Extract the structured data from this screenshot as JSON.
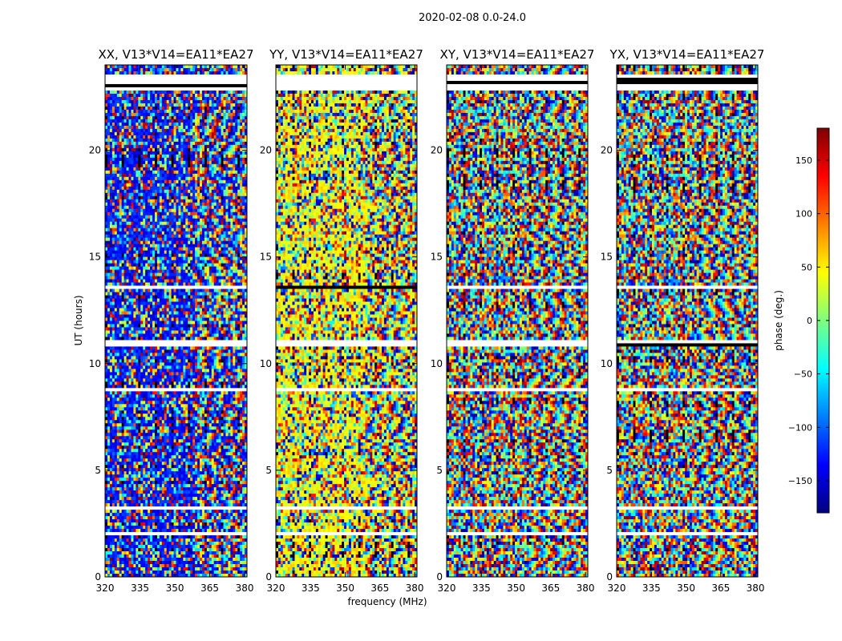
{
  "figure": {
    "suptitle": "2020-02-08 0.0-24.0"
  },
  "chart_data": [
    {
      "type": "heatmap",
      "title": "XX, V13*V14=EA11*EA27",
      "xlabel": "",
      "ylabel": "UT (hours)",
      "xlim": [
        320,
        381
      ],
      "ylim": [
        0,
        24
      ],
      "xticks": [
        320,
        335,
        350,
        365,
        380
      ],
      "yticks": [
        0,
        5,
        10,
        15,
        20
      ],
      "z_label": "phase (deg.)",
      "z_range": [
        -180,
        180
      ],
      "dominant_phase": -130
    },
    {
      "type": "heatmap",
      "title": "YY, V13*V14=EA11*EA27",
      "xlabel": "frequency (MHz)",
      "ylabel": "",
      "xlim": [
        320,
        381
      ],
      "ylim": [
        0,
        24
      ],
      "xticks": [
        320,
        335,
        350,
        365,
        380
      ],
      "yticks": [
        0,
        5,
        10,
        15,
        20
      ],
      "z_label": "phase (deg.)",
      "z_range": [
        -180,
        180
      ],
      "dominant_phase": 45
    },
    {
      "type": "heatmap",
      "title": "XY, V13*V14=EA11*EA27",
      "xlabel": "",
      "ylabel": "",
      "xlim": [
        320,
        381
      ],
      "ylim": [
        0,
        24
      ],
      "xticks": [
        320,
        335,
        350,
        365,
        380
      ],
      "yticks": [
        0,
        5,
        10,
        15,
        20
      ],
      "z_label": "phase (deg.)",
      "z_range": [
        -180,
        180
      ],
      "dominant_phase": null
    },
    {
      "type": "heatmap",
      "title": "YX, V13*V14=EA11*EA27",
      "xlabel": "",
      "ylabel": "",
      "xlim": [
        320,
        381
      ],
      "ylim": [
        0,
        24
      ],
      "xticks": [
        320,
        335,
        350,
        365,
        380
      ],
      "yticks": [
        0,
        5,
        10,
        15,
        20
      ],
      "z_label": "phase (deg.)",
      "z_range": [
        -180,
        180
      ],
      "dominant_phase": null
    }
  ],
  "flagged_ut_ranges": [
    [
      22.8,
      23.5
    ],
    [
      13.45,
      13.6
    ],
    [
      10.75,
      11.05
    ],
    [
      8.7,
      8.8
    ],
    [
      3.1,
      3.25
    ],
    [
      2.0,
      2.1
    ]
  ],
  "colorbar": {
    "label": "phase (deg.)",
    "min": -180,
    "max": 180,
    "ticks": [
      150,
      100,
      50,
      0,
      -50,
      -100,
      -150
    ],
    "tick_labels": [
      "150",
      "100",
      "50",
      "0",
      "−50",
      "−100",
      "−150"
    ],
    "colormap": "jet",
    "jet_stops": [
      "#00007f",
      "#0000ff",
      "#007fff",
      "#00ffff",
      "#7fff7f",
      "#ffff00",
      "#ff7f00",
      "#ff0000",
      "#7f0000"
    ],
    "flag_color": "#ffffff"
  }
}
